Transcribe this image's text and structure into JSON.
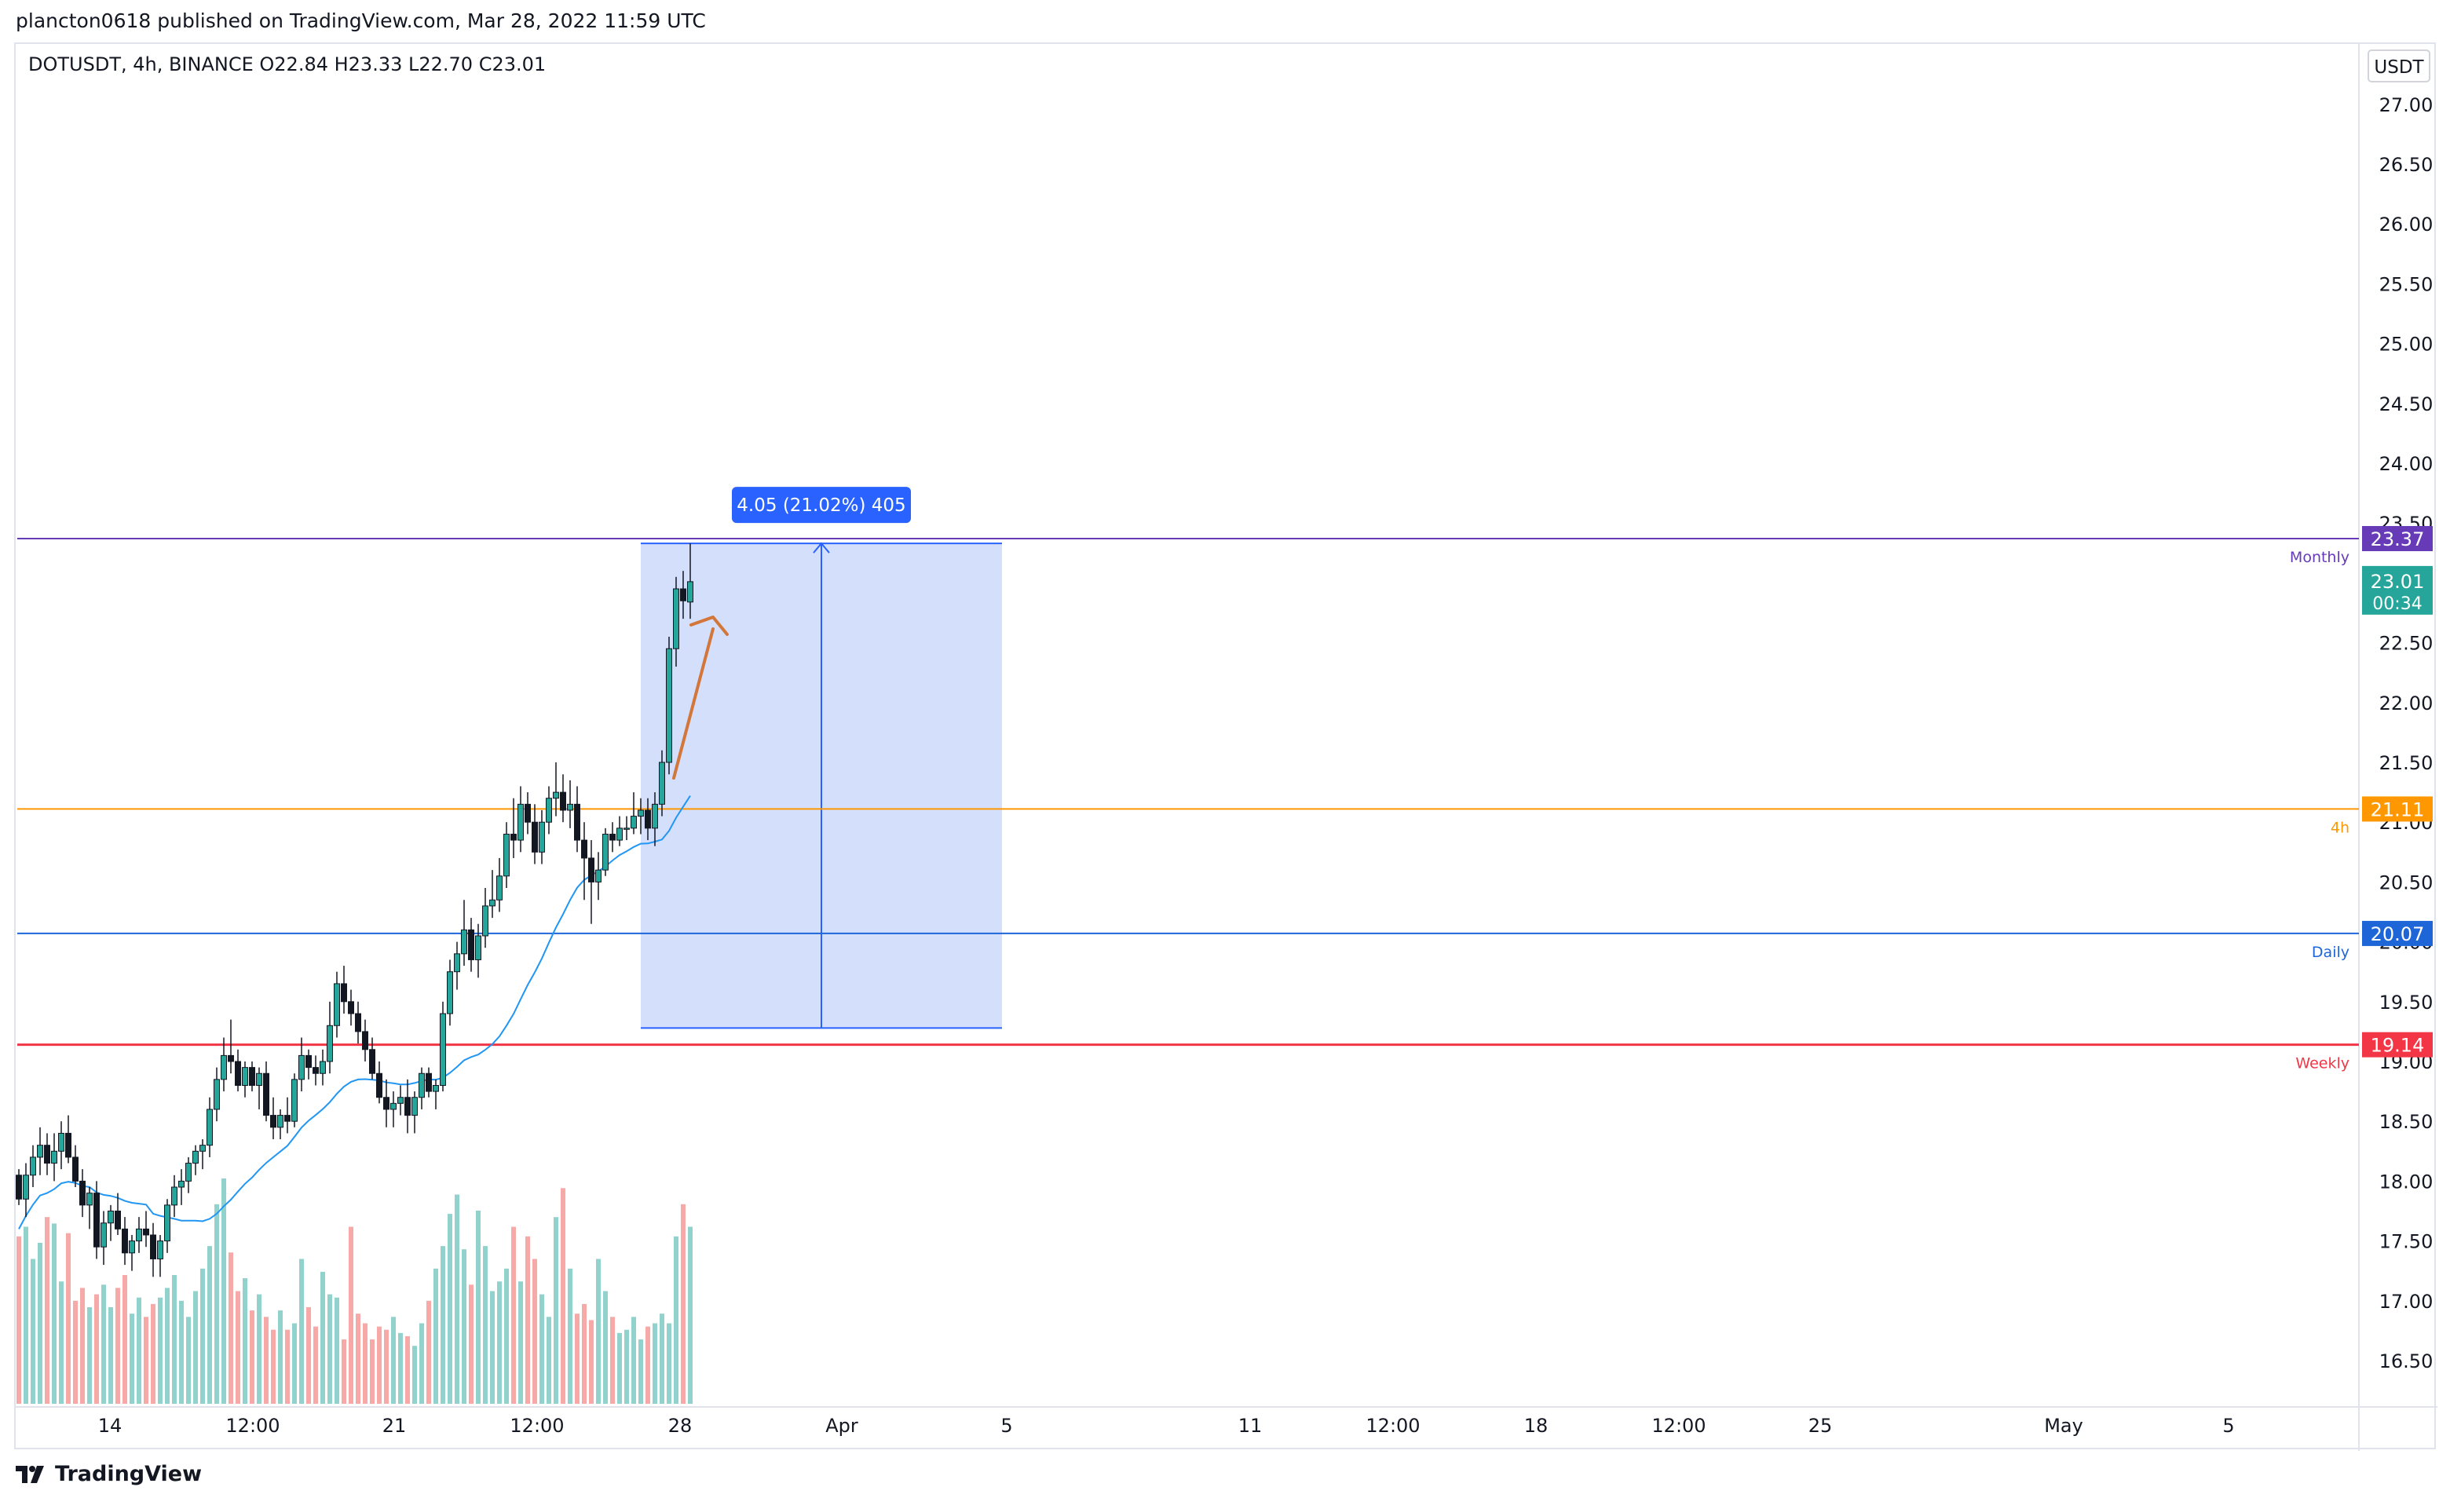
{
  "header": {
    "published_text": "plancton0618 published on TradingView.com, Mar 28, 2022 11:59 UTC"
  },
  "legend": {
    "symbol": "DOTUSDT, 4h, BINANCE",
    "ohlc": "O22.84  H23.33  L22.70  C23.01"
  },
  "currency_button": "USDT",
  "footer": {
    "brand": "TradingView"
  },
  "colors": {
    "up": "#26a69a",
    "down": "#ef5350",
    "ma": "#2196f3",
    "monthly": "#673ab7",
    "four_h": "#ff9800",
    "daily": "#1e66d8",
    "weekly": "#f23645",
    "range_fill": "#cfdcfb",
    "range_label_bg": "#2962ff",
    "projection": "#d2763a"
  },
  "chart_data": {
    "type": "candlestick",
    "symbol": "DOTUSDT",
    "interval": "4h",
    "exchange": "BINANCE",
    "ylim": [
      16.15,
      27.45
    ],
    "y_ticks": [
      "16.50",
      "17.00",
      "17.50",
      "18.00",
      "18.50",
      "19.00",
      "19.50",
      "20.00",
      "20.50",
      "21.00",
      "21.50",
      "22.00",
      "22.50",
      "23.00",
      "23.50",
      "24.00",
      "24.50",
      "25.00",
      "25.50",
      "26.00",
      "26.50",
      "27.00"
    ],
    "x_ticks": [
      "14",
      "12:00",
      "21",
      "12:00",
      "28",
      "Apr",
      "5",
      "11",
      "12:00",
      "18",
      "12:00",
      "25",
      "May",
      "5"
    ],
    "levels": [
      {
        "label": "Monthly",
        "price": "23.37",
        "color_key": "monthly"
      },
      {
        "label": "4h",
        "price": "21.11",
        "color_key": "four_h"
      },
      {
        "label": "Daily",
        "price": "20.07",
        "color_key": "daily"
      },
      {
        "label": "Weekly",
        "price": "19.14",
        "color_key": "weekly"
      }
    ],
    "last_price": {
      "price": "23.01",
      "countdown": "00:34"
    },
    "measure": {
      "label": "4.05 (21.02%) 405",
      "from": 19.28,
      "to": 23.33
    },
    "candles_ohlc": [
      [
        18.05,
        18.1,
        17.8,
        17.85
      ],
      [
        17.85,
        18.15,
        17.7,
        18.05
      ],
      [
        18.05,
        18.3,
        17.95,
        18.2
      ],
      [
        18.2,
        18.45,
        18.05,
        18.3
      ],
      [
        18.3,
        18.4,
        18.05,
        18.15
      ],
      [
        18.15,
        18.4,
        18.0,
        18.25
      ],
      [
        18.25,
        18.5,
        18.1,
        18.4
      ],
      [
        18.4,
        18.55,
        18.15,
        18.2
      ],
      [
        18.2,
        18.3,
        17.95,
        18.0
      ],
      [
        18.0,
        18.1,
        17.7,
        17.8
      ],
      [
        17.8,
        17.95,
        17.6,
        17.9
      ],
      [
        17.9,
        18.0,
        17.35,
        17.45
      ],
      [
        17.45,
        17.75,
        17.3,
        17.65
      ],
      [
        17.65,
        17.8,
        17.5,
        17.75
      ],
      [
        17.75,
        17.9,
        17.55,
        17.6
      ],
      [
        17.6,
        17.7,
        17.3,
        17.4
      ],
      [
        17.4,
        17.55,
        17.25,
        17.5
      ],
      [
        17.5,
        17.7,
        17.4,
        17.6
      ],
      [
        17.6,
        17.75,
        17.45,
        17.55
      ],
      [
        17.55,
        17.65,
        17.2,
        17.35
      ],
      [
        17.35,
        17.55,
        17.2,
        17.5
      ],
      [
        17.5,
        17.85,
        17.4,
        17.8
      ],
      [
        17.8,
        18.05,
        17.7,
        17.95
      ],
      [
        17.95,
        18.1,
        17.8,
        18.0
      ],
      [
        18.0,
        18.2,
        17.9,
        18.15
      ],
      [
        18.15,
        18.3,
        18.05,
        18.25
      ],
      [
        18.25,
        18.35,
        18.1,
        18.3
      ],
      [
        18.3,
        18.7,
        18.2,
        18.6
      ],
      [
        18.6,
        18.95,
        18.5,
        18.85
      ],
      [
        18.85,
        19.2,
        18.75,
        19.05
      ],
      [
        19.05,
        19.35,
        18.9,
        19.0
      ],
      [
        19.0,
        19.1,
        18.75,
        18.8
      ],
      [
        18.8,
        19.0,
        18.7,
        18.95
      ],
      [
        18.95,
        19.0,
        18.75,
        18.8
      ],
      [
        18.8,
        18.95,
        18.6,
        18.9
      ],
      [
        18.9,
        19.0,
        18.5,
        18.55
      ],
      [
        18.55,
        18.7,
        18.35,
        18.45
      ],
      [
        18.45,
        18.6,
        18.35,
        18.55
      ],
      [
        18.55,
        18.7,
        18.4,
        18.5
      ],
      [
        18.5,
        18.9,
        18.45,
        18.85
      ],
      [
        18.85,
        19.2,
        18.75,
        19.05
      ],
      [
        19.05,
        19.1,
        18.85,
        18.95
      ],
      [
        18.95,
        19.05,
        18.8,
        18.9
      ],
      [
        18.9,
        19.1,
        18.8,
        19.0
      ],
      [
        19.0,
        19.5,
        18.9,
        19.3
      ],
      [
        19.3,
        19.75,
        19.2,
        19.65
      ],
      [
        19.65,
        19.8,
        19.4,
        19.5
      ],
      [
        19.5,
        19.6,
        19.3,
        19.4
      ],
      [
        19.4,
        19.5,
        19.15,
        19.25
      ],
      [
        19.25,
        19.35,
        19.0,
        19.1
      ],
      [
        19.1,
        19.2,
        18.85,
        18.9
      ],
      [
        18.9,
        19.0,
        18.65,
        18.7
      ],
      [
        18.7,
        18.85,
        18.45,
        18.6
      ],
      [
        18.6,
        18.75,
        18.45,
        18.65
      ],
      [
        18.65,
        18.8,
        18.55,
        18.7
      ],
      [
        18.7,
        18.85,
        18.4,
        18.55
      ],
      [
        18.55,
        18.75,
        18.4,
        18.7
      ],
      [
        18.7,
        18.95,
        18.6,
        18.9
      ],
      [
        18.9,
        18.95,
        18.7,
        18.75
      ],
      [
        18.75,
        18.85,
        18.6,
        18.8
      ],
      [
        18.8,
        19.5,
        18.75,
        19.4
      ],
      [
        19.4,
        19.85,
        19.3,
        19.75
      ],
      [
        19.75,
        20.0,
        19.6,
        19.9
      ],
      [
        19.9,
        20.35,
        19.8,
        20.1
      ],
      [
        20.1,
        20.2,
        19.75,
        19.85
      ],
      [
        19.85,
        20.15,
        19.7,
        20.05
      ],
      [
        20.05,
        20.45,
        19.95,
        20.3
      ],
      [
        20.3,
        20.6,
        20.2,
        20.35
      ],
      [
        20.35,
        20.7,
        20.25,
        20.55
      ],
      [
        20.55,
        21.0,
        20.45,
        20.9
      ],
      [
        20.9,
        21.2,
        20.7,
        20.85
      ],
      [
        20.85,
        21.3,
        20.75,
        21.15
      ],
      [
        21.15,
        21.25,
        20.9,
        21.0
      ],
      [
        21.0,
        21.15,
        20.65,
        20.75
      ],
      [
        20.75,
        21.1,
        20.65,
        21.0
      ],
      [
        21.0,
        21.3,
        20.9,
        21.2
      ],
      [
        21.2,
        21.5,
        21.05,
        21.25
      ],
      [
        21.25,
        21.4,
        21.0,
        21.1
      ],
      [
        21.1,
        21.35,
        20.95,
        21.15
      ],
      [
        21.15,
        21.3,
        20.75,
        20.85
      ],
      [
        20.85,
        21.0,
        20.35,
        20.7
      ],
      [
        20.7,
        20.85,
        20.15,
        20.5
      ],
      [
        20.5,
        20.75,
        20.35,
        20.6
      ],
      [
        20.6,
        20.95,
        20.55,
        20.9
      ],
      [
        20.9,
        21.0,
        20.75,
        20.85
      ],
      [
        20.85,
        21.05,
        20.8,
        20.95
      ],
      [
        20.95,
        21.05,
        20.85,
        20.95
      ],
      [
        20.95,
        21.25,
        20.9,
        21.05
      ],
      [
        21.05,
        21.2,
        20.9,
        21.1
      ],
      [
        21.1,
        21.2,
        20.85,
        20.95
      ],
      [
        20.95,
        21.25,
        20.8,
        21.15
      ],
      [
        21.15,
        21.6,
        21.05,
        21.5
      ],
      [
        21.5,
        22.55,
        21.4,
        22.45
      ],
      [
        22.45,
        23.05,
        22.3,
        22.95
      ],
      [
        22.95,
        23.1,
        22.7,
        22.85
      ],
      [
        22.84,
        23.33,
        22.7,
        23.01
      ]
    ],
    "volume_rel": [
      0.52,
      0.55,
      0.45,
      0.5,
      0.58,
      0.56,
      0.38,
      0.53,
      0.32,
      0.36,
      0.3,
      0.34,
      0.37,
      0.3,
      0.36,
      0.4,
      0.28,
      0.33,
      0.27,
      0.31,
      0.33,
      0.36,
      0.4,
      0.32,
      0.27,
      0.35,
      0.42,
      0.49,
      0.62,
      0.7,
      0.47,
      0.35,
      0.39,
      0.29,
      0.34,
      0.27,
      0.23,
      0.29,
      0.23,
      0.25,
      0.45,
      0.3,
      0.24,
      0.41,
      0.34,
      0.33,
      0.2,
      0.55,
      0.28,
      0.25,
      0.2,
      0.24,
      0.23,
      0.27,
      0.22,
      0.21,
      0.18,
      0.25,
      0.32,
      0.42,
      0.49,
      0.59,
      0.65,
      0.48,
      0.37,
      0.6,
      0.49,
      0.35,
      0.38,
      0.42,
      0.55,
      0.38,
      0.52,
      0.45,
      0.34,
      0.27,
      0.58,
      0.67,
      0.42,
      0.28,
      0.31,
      0.26,
      0.45,
      0.35,
      0.27,
      0.22,
      0.23,
      0.27,
      0.2,
      0.24,
      0.25,
      0.28,
      0.25,
      0.52,
      0.62,
      0.55
    ]
  }
}
